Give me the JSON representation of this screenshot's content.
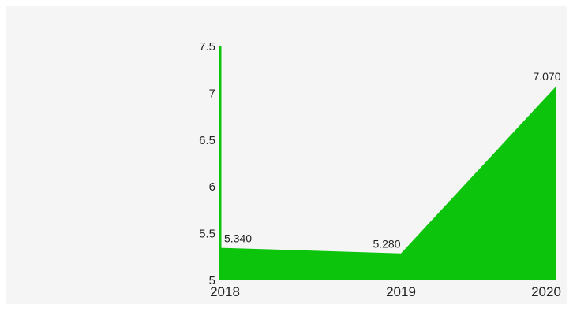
{
  "chart_data": {
    "type": "area",
    "categories": [
      "2018",
      "2019",
      "2020"
    ],
    "series": [
      {
        "values": [
          5.34,
          5.28,
          7.07
        ],
        "labels": [
          "5.340",
          "5.280",
          "7.070"
        ]
      }
    ],
    "yticks": [
      "5",
      "5.5",
      "6",
      "6.5",
      "7",
      "7.5"
    ],
    "ylim": [
      5,
      7.5
    ],
    "grid": false,
    "legend": "none",
    "colors": {
      "area": "#0cc40c",
      "axis": "#0cc40c",
      "text": "#222222",
      "background": "#f5f5f5"
    }
  }
}
